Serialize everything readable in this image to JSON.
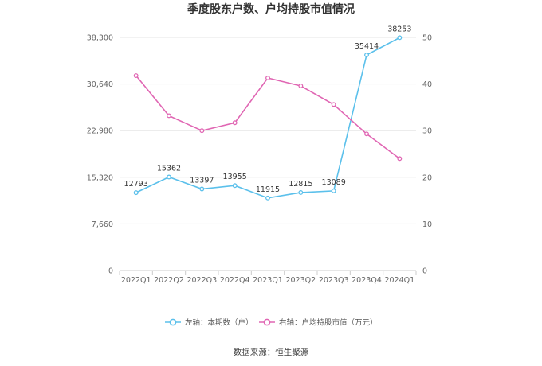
{
  "chart_data": {
    "type": "line",
    "title": "季度股东户数、户均持股市值情况",
    "categories": [
      "2022Q1",
      "2022Q2",
      "2022Q3",
      "2022Q4",
      "2023Q1",
      "2023Q2",
      "2023Q3",
      "2023Q4",
      "2024Q1"
    ],
    "left_axis": {
      "ticks": [
        "0",
        "7,660",
        "15,320",
        "22,980",
        "30,640",
        "38,300"
      ],
      "ylim": [
        0,
        38300
      ]
    },
    "right_axis": {
      "ticks": [
        "0",
        "10",
        "20",
        "30",
        "40",
        "50"
      ],
      "ylim": [
        0,
        50
      ]
    },
    "series": [
      {
        "name": "左轴：本期数（户）",
        "axis": "left",
        "color": "#5bc0eb",
        "values": [
          12793,
          15362,
          13397,
          13955,
          11915,
          12815,
          13089,
          35414,
          38253
        ],
        "labels": [
          "12793",
          "15362",
          "13397",
          "13955",
          "11915",
          "12815",
          "13089",
          "35414",
          "38253"
        ]
      },
      {
        "name": "右轴：户均持股市值（万元）",
        "axis": "right",
        "color": "#e066b3",
        "values": [
          41.8,
          33.2,
          30.0,
          31.7,
          41.3,
          39.6,
          35.6,
          29.3,
          24.0
        ]
      }
    ],
    "grid": true,
    "legend_position": "bottom"
  },
  "footer": {
    "source": "数据来源：恒生聚源"
  }
}
